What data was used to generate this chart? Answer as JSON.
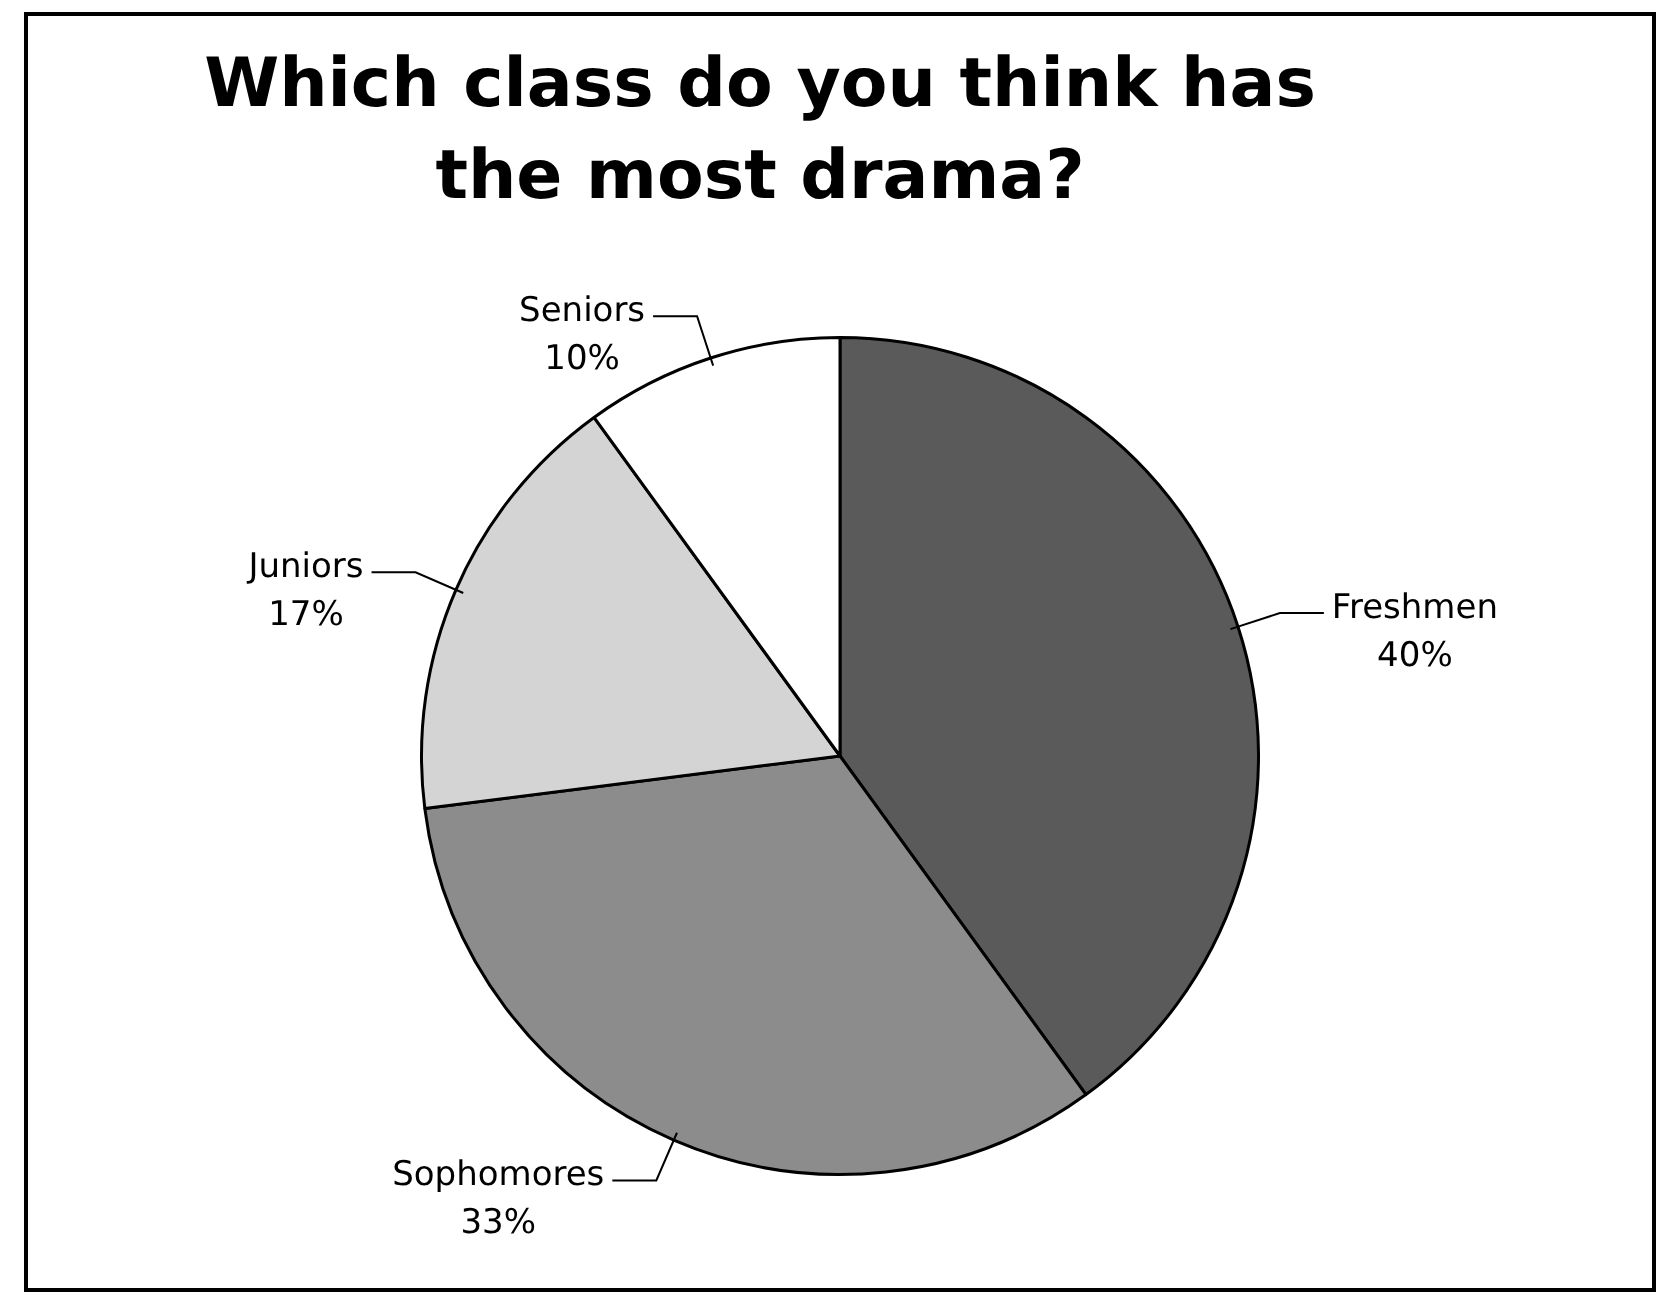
{
  "chart_data": {
    "type": "pie",
    "title": "Which class do you think has the most drama?",
    "categories": [
      "Freshmen",
      "Sophomores",
      "Juniors",
      "Seniors"
    ],
    "values": [
      40,
      33,
      17,
      10
    ],
    "value_labels": [
      "40%",
      "33%",
      "17%",
      "10%"
    ],
    "colors": [
      "#5a5a5a",
      "#8c8c8c",
      "#d4d4d4",
      "#ffffff"
    ],
    "legend": false
  }
}
